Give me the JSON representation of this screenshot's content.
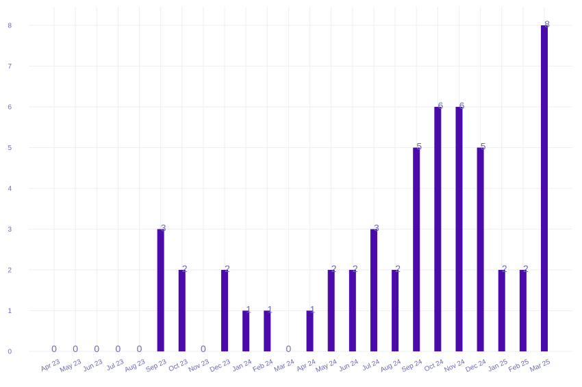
{
  "chart_data": {
    "type": "bar",
    "categories": [
      "Apr 23",
      "May 23",
      "Jun 23",
      "Jul 23",
      "Aug 23",
      "Sep 23",
      "Oct 23",
      "Nov 23",
      "Dec 23",
      "Jan 24",
      "Feb 24",
      "Mar 24",
      "Apr 24",
      "May 24",
      "Jun 24",
      "Jul 24",
      "Aug 24",
      "Sep 24",
      "Oct 24",
      "Nov 24",
      "Dec 24",
      "Jan 25",
      "Feb 25",
      "Mar 25"
    ],
    "values": [
      0,
      0,
      0,
      0,
      0,
      3,
      2,
      0,
      2,
      1,
      1,
      0,
      1,
      2,
      2,
      3,
      2,
      5,
      6,
      6,
      5,
      2,
      2,
      8
    ],
    "title": "",
    "xlabel": "",
    "ylabel": "",
    "ylim": [
      0,
      8
    ],
    "yticks": [
      "0",
      "1",
      "2",
      "3",
      "4",
      "5",
      "6",
      "7",
      "8"
    ],
    "grid": true,
    "legend": "none",
    "colors": {
      "bar": "#4b0aaa",
      "label": "#6a6ab0",
      "grid": "#eeeef3"
    }
  }
}
